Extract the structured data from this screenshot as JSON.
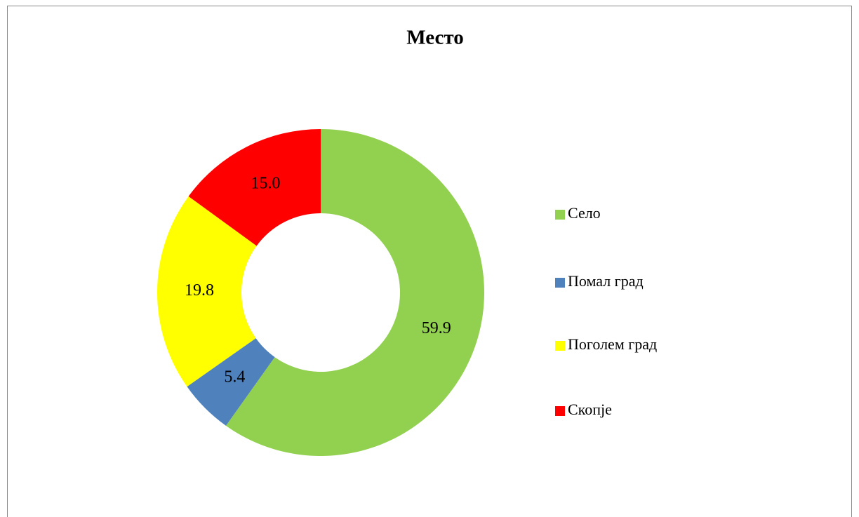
{
  "chart_data": {
    "type": "donut",
    "title": "Место",
    "categories": [
      "Село",
      "Помал град",
      "Поголем град",
      "Скопје"
    ],
    "values": [
      59.9,
      5.4,
      19.8,
      15.0
    ],
    "value_labels": [
      "59.9",
      "5.4",
      "19.8",
      "15.0"
    ],
    "colors": [
      "#92d050",
      "#4f81bd",
      "#ffff00",
      "#ff0000"
    ],
    "legend": "right"
  }
}
